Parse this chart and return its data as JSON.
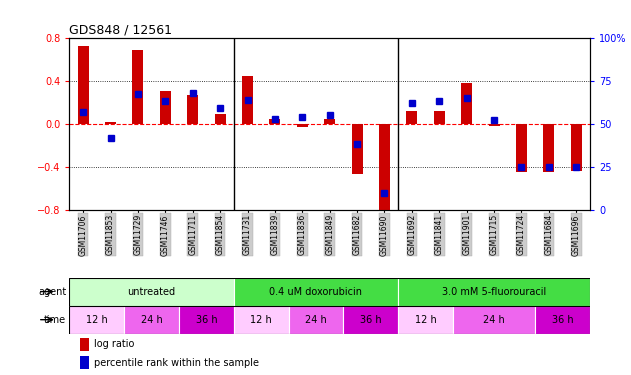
{
  "title": "GDS848 / 12561",
  "samples": [
    "GSM11706",
    "GSM11853",
    "GSM11729",
    "GSM11746",
    "GSM11711",
    "GSM11854",
    "GSM11731",
    "GSM11839",
    "GSM11836",
    "GSM11849",
    "GSM11682",
    "GSM11690",
    "GSM11692",
    "GSM11841",
    "GSM11901",
    "GSM11715",
    "GSM11724",
    "GSM11684",
    "GSM11696"
  ],
  "log_ratio": [
    0.72,
    0.02,
    0.68,
    0.3,
    0.27,
    0.09,
    0.44,
    0.04,
    -0.03,
    0.04,
    -0.47,
    -0.82,
    0.12,
    0.12,
    0.38,
    -0.02,
    -0.45,
    -0.45,
    -0.44
  ],
  "percentile": [
    57,
    42,
    67,
    63,
    68,
    59,
    64,
    53,
    54,
    55,
    38,
    10,
    62,
    63,
    65,
    52,
    25,
    25,
    25
  ],
  "ylim_left": [
    -0.8,
    0.8
  ],
  "ylim_right": [
    0,
    100
  ],
  "yticks_left": [
    -0.8,
    -0.4,
    0.0,
    0.4,
    0.8
  ],
  "yticks_right": [
    0,
    25,
    50,
    75,
    100
  ],
  "bar_color": "#cc0000",
  "dot_color": "#0000cc",
  "agent_groups": [
    {
      "label": "untreated",
      "start": 0,
      "end": 6,
      "color": "#ccffcc"
    },
    {
      "label": "0.4 uM doxorubicin",
      "start": 6,
      "end": 12,
      "color": "#44dd44"
    },
    {
      "label": "3.0 mM 5-fluorouracil",
      "start": 12,
      "end": 19,
      "color": "#44dd44"
    }
  ],
  "time_groups": [
    {
      "label": "12 h",
      "start": 0,
      "end": 2,
      "color": "#ffccff"
    },
    {
      "label": "24 h",
      "start": 2,
      "end": 4,
      "color": "#ee66ee"
    },
    {
      "label": "36 h",
      "start": 4,
      "end": 6,
      "color": "#cc00cc"
    },
    {
      "label": "12 h",
      "start": 6,
      "end": 8,
      "color": "#ffccff"
    },
    {
      "label": "24 h",
      "start": 8,
      "end": 10,
      "color": "#ee66ee"
    },
    {
      "label": "36 h",
      "start": 10,
      "end": 12,
      "color": "#cc00cc"
    },
    {
      "label": "12 h",
      "start": 12,
      "end": 14,
      "color": "#ffccff"
    },
    {
      "label": "24 h",
      "start": 14,
      "end": 17,
      "color": "#ee66ee"
    },
    {
      "label": "36 h",
      "start": 17,
      "end": 19,
      "color": "#cc00cc"
    }
  ],
  "legend_items": [
    {
      "label": "log ratio",
      "color": "#cc0000"
    },
    {
      "label": "percentile rank within the sample",
      "color": "#0000cc"
    }
  ]
}
